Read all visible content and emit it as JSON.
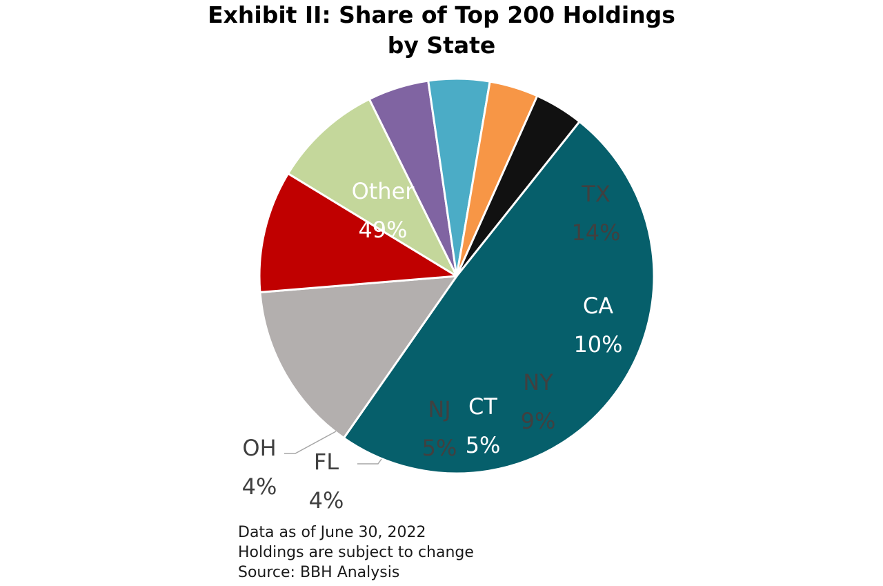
{
  "chart_data": {
    "type": "pie",
    "title_lines": [
      "Exhibit II: Share of Top 200 Holdings",
      "by State"
    ],
    "slices": [
      {
        "label": "Other",
        "value_label": "49%",
        "value": 49,
        "color": "#065f6b",
        "text_color": "#ffffff"
      },
      {
        "label": "TX",
        "value_label": "14%",
        "value": 14,
        "color": "#b3afae",
        "text_color": "#404040"
      },
      {
        "label": "CA",
        "value_label": "10%",
        "value": 10,
        "color": "#c00000",
        "text_color": "#ffffff"
      },
      {
        "label": "NY",
        "value_label": "9%",
        "value": 9,
        "color": "#c4d79b",
        "text_color": "#404040"
      },
      {
        "label": "CT",
        "value_label": "5%",
        "value": 5,
        "color": "#8064a2",
        "text_color": "#ffffff"
      },
      {
        "label": "NJ",
        "value_label": "5%",
        "value": 5,
        "color": "#4bacc6",
        "text_color": "#404040"
      },
      {
        "label": "FL",
        "value_label": "4%",
        "value": 4,
        "color": "#f79646",
        "text_color": "#404040"
      },
      {
        "label": "OH",
        "value_label": "4%",
        "value": 4,
        "color": "#111111",
        "text_color": "#404040"
      }
    ],
    "notes": [
      "Data as of June 30, 2022",
      "Holdings are subject to change",
      "Source: BBH Analysis"
    ]
  }
}
